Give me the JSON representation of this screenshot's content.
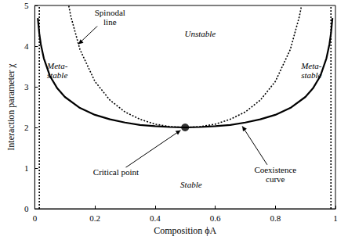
{
  "chart_data": {
    "type": "line",
    "x_label": "Composition ϕA",
    "y_label": "Interaction parameter χ",
    "xlim": [
      0,
      1
    ],
    "xticks": [
      0,
      0.2,
      0.4,
      0.6,
      0.8,
      1
    ],
    "ylim": [
      0,
      5
    ],
    "yticks": [
      0,
      1,
      2,
      3,
      4,
      5
    ],
    "grid": false,
    "series": [
      {
        "type": "line",
        "color": "#000000",
        "line_style": "solid",
        "marker": "none",
        "x": [
          0.01,
          0.015,
          0.02,
          0.03,
          0.05,
          0.075,
          0.1,
          0.15,
          0.2,
          0.25,
          0.3,
          0.35,
          0.4,
          0.45,
          0.5,
          0.55,
          0.6,
          0.65,
          0.7,
          0.75,
          0.8,
          0.85,
          0.9,
          0.925,
          0.95,
          0.97,
          0.98,
          0.985,
          0.99
        ],
        "values": [
          4.69,
          4.31,
          4.05,
          3.7,
          3.27,
          2.96,
          2.75,
          2.48,
          2.31,
          2.2,
          2.12,
          2.06,
          2.03,
          2.01,
          2.0,
          2.01,
          2.03,
          2.06,
          2.12,
          2.2,
          2.31,
          2.48,
          2.75,
          2.96,
          3.27,
          3.7,
          4.05,
          4.31,
          4.69
        ]
      },
      {
        "type": "line",
        "color": "#000000",
        "line_style": "dotted",
        "marker": "none",
        "x": [
          0.113,
          0.12,
          0.15,
          0.2,
          0.25,
          0.3,
          0.35,
          0.4,
          0.45,
          0.5,
          0.55,
          0.6,
          0.65,
          0.7,
          0.75,
          0.8,
          0.85,
          0.88,
          0.887
        ],
        "values": [
          4.99,
          4.73,
          3.92,
          3.13,
          2.67,
          2.38,
          2.2,
          2.08,
          2.02,
          2.0,
          2.02,
          2.08,
          2.2,
          2.38,
          2.67,
          3.13,
          3.92,
          4.73,
          4.99
        ]
      },
      {
        "type": "line",
        "color": "#000000",
        "line_style": "dotted",
        "marker": "none",
        "x": [
          0.015,
          0.015
        ],
        "values": [
          0,
          5
        ]
      },
      {
        "type": "line",
        "color": "#000000",
        "line_style": "dotted",
        "marker": "none",
        "x": [
          0.985,
          0.985
        ],
        "values": [
          0,
          5
        ]
      },
      {
        "type": "scatter",
        "color": "#000000",
        "marker": "circle",
        "x": [
          0.5
        ],
        "values": [
          2
        ]
      }
    ],
    "annotations": [
      {
        "text": "Spinodal\nline",
        "x": 0.25,
        "y": 4.72,
        "arrow": [
          0.145,
          4.05
        ]
      },
      {
        "text": "Meta-\nstable",
        "x": 0.075,
        "y": 3.4
      },
      {
        "text": "Meta-\nstable",
        "x": 0.92,
        "y": 3.4
      },
      {
        "text": "Unstable",
        "x": 0.55,
        "y": 4.3
      },
      {
        "text": "Stable",
        "x": 0.52,
        "y": 0.6
      },
      {
        "text": "Critical point",
        "x": 0.27,
        "y": 0.9,
        "arrow": [
          0.485,
          1.93
        ]
      },
      {
        "text": "Coexistence\ncurve",
        "x": 0.8,
        "y": 0.85,
        "arrow": [
          0.69,
          2.03
        ]
      }
    ]
  }
}
